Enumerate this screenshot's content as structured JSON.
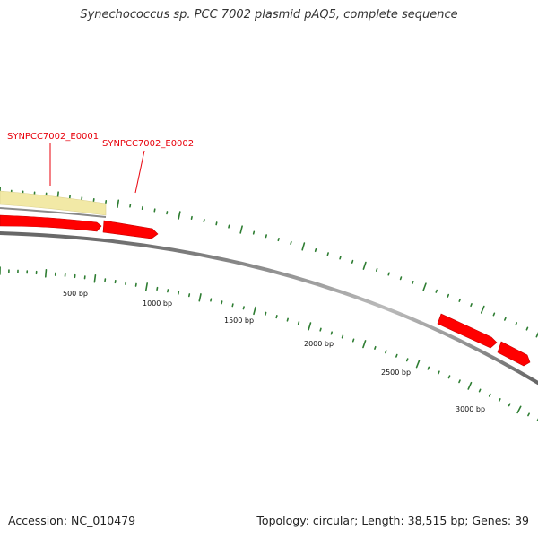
{
  "title": "Synechococcus sp. PCC 7002 plasmid pAQ5, complete sequence",
  "footer": {
    "accession": "Accession: NC_010479",
    "summary": "Topology: circular; Length: 38,515 bp; Genes: 39"
  },
  "genes": [
    {
      "label": "SYNPCC7002_E0001"
    },
    {
      "label": "SYNPCC7002_E0002"
    }
  ],
  "scale_labels": [
    "500 bp",
    "1000 bp",
    "1500 bp",
    "2000 bp",
    "2500 bp",
    "3000 bp"
  ],
  "colors": {
    "gene_forward": "#ff0000",
    "gene_highlight": "#f2e9a6",
    "backbone": "#888888",
    "tick_marks": "#2e7d32",
    "gene_label": "#e8000b"
  }
}
